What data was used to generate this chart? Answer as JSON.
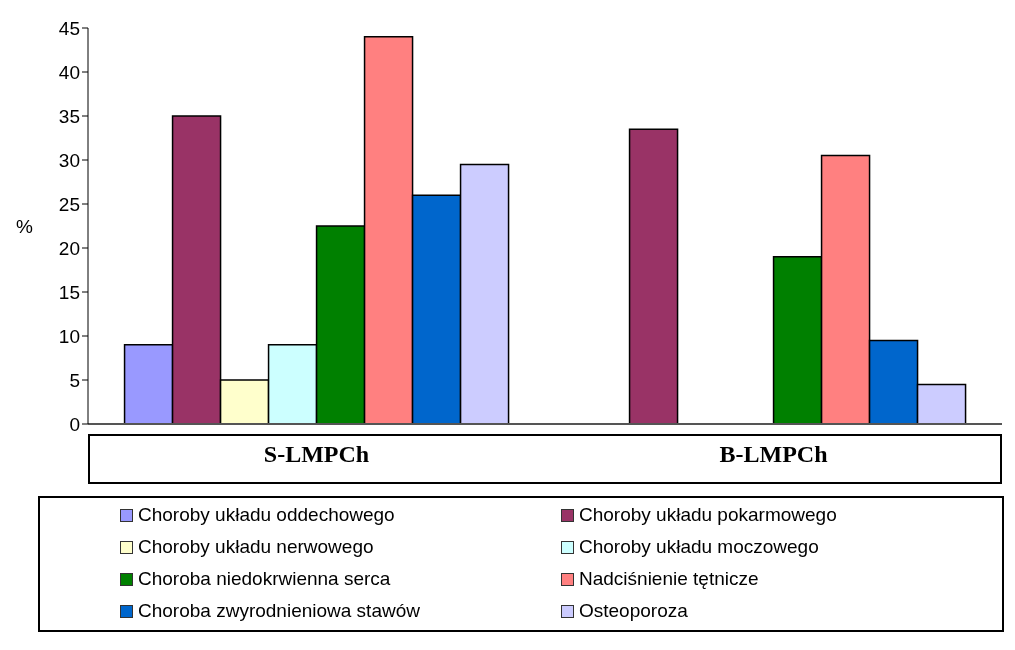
{
  "chart_data": {
    "type": "bar",
    "ylabel": "%",
    "categories": [
      "S-LMPCh",
      "B-LMPCh"
    ],
    "series": [
      {
        "name": "Choroby układu oddechowego",
        "color": "#9999ff",
        "values": [
          9,
          0
        ]
      },
      {
        "name": "Choroby układu pokarmowego",
        "color": "#993366",
        "values": [
          35,
          33.5
        ]
      },
      {
        "name": "Choroby układu nerwowego",
        "color": "#ffffcc",
        "values": [
          5,
          0
        ]
      },
      {
        "name": "Choroby układu moczowego",
        "color": "#ccffff",
        "values": [
          9,
          0
        ]
      },
      {
        "name": "Choroba niedokrwienna serca",
        "color": "#008000",
        "values": [
          22.5,
          19
        ]
      },
      {
        "name": "Nadciśnienie tętnicze",
        "color": "#ff8080",
        "values": [
          44,
          30.5
        ]
      },
      {
        "name": "Choroba zwyrodnieniowa stawów",
        "color": "#0066cc",
        "values": [
          26,
          9.5
        ]
      },
      {
        "name": "Osteoporoza",
        "color": "#ccccff",
        "values": [
          29.5,
          4.5
        ]
      }
    ],
    "ylim": [
      0,
      45
    ],
    "yticks": [
      0,
      5,
      10,
      15,
      20,
      25,
      30,
      35,
      40,
      45
    ],
    "legend": "bottom"
  }
}
